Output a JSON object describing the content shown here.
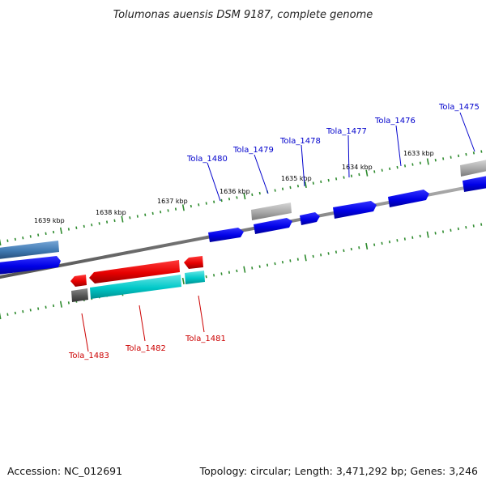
{
  "title": "Tolumonas auensis DSM 9187, complete genome",
  "footer": {
    "accession": "Accession: NC_012691",
    "topology": "Topology: circular; Length: 3,471,292 bp; Genes: 3,246"
  },
  "colors": {
    "forward_cds": "#0000e6",
    "reverse_cds": "#e60000",
    "cyan_feature": "#00c8c8",
    "grey_feature": "#a8a8a8",
    "steel_feature": "#3f79b2",
    "dark_grey_feature": "#555555",
    "backbone": "#808080",
    "tick": "#2e8b2e",
    "forward_label": "#0000cc",
    "reverse_label": "#cc0000"
  },
  "scale_labels": [
    "1639 kbp",
    "1638 kbp",
    "1637 kbp",
    "1636 kbp",
    "1635 kbp",
    "1634 kbp",
    "1633 kbp"
  ],
  "forward_gene_labels": [
    "Tola_1480",
    "Tola_1479",
    "Tola_1478",
    "Tola_1477",
    "Tola_1476",
    "Tola_1475"
  ],
  "reverse_gene_labels": [
    "Tola_1483",
    "Tola_1482",
    "Tola_1481"
  ]
}
